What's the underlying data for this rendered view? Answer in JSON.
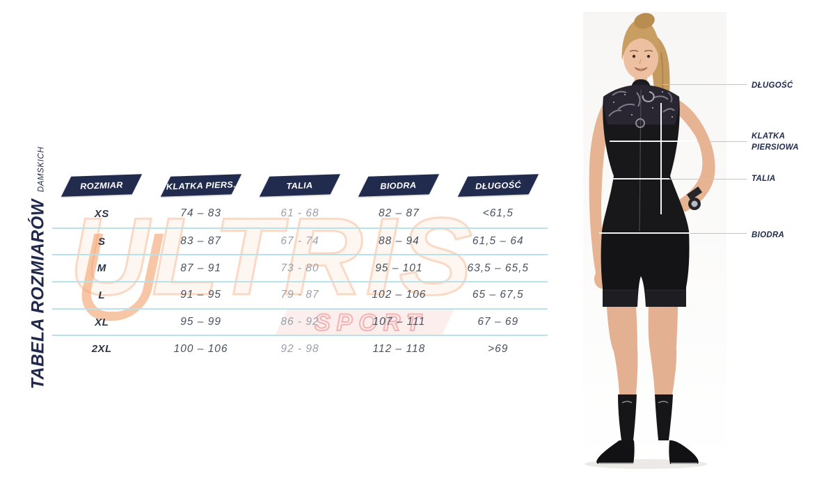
{
  "side_title": {
    "title": "TABELA ROZMIARÓW",
    "subtitle": "DAMSKICH"
  },
  "watermark": {
    "brand": "ULTRIS",
    "sub_brand": "SPORT",
    "orange": "#f2a06e",
    "red": "#e87878"
  },
  "measurement_labels": {
    "length": "DŁUGOŚĆ",
    "chest": "KLATKA PIERSIOWA",
    "waist": "TALIA",
    "hips": "BIODRA"
  },
  "colors": {
    "header_bg": "#212b4e",
    "navy_text": "#1f2a4e",
    "body_text": "#49525f",
    "muted_text": "#9aa1ab",
    "separator": "#b7e1eb"
  },
  "chart_data": {
    "type": "table",
    "title": "TABELA ROZMIARÓW DAMSKICH",
    "columns": [
      "ROZMIAR",
      "KLATKA PIERS.",
      "TALIA",
      "BIODRA",
      "DŁUGOŚĆ"
    ],
    "rows": [
      [
        "XS",
        "74 – 83",
        "61 - 68",
        "82 – 87",
        "<61,5"
      ],
      [
        "S",
        "83 – 87",
        "67 - 74",
        "88 – 94",
        "61,5 – 64"
      ],
      [
        "M",
        "87 – 91",
        "73 - 80",
        "95 – 101",
        "63,5 – 65,5"
      ],
      [
        "L",
        "91 – 95",
        "79 - 87",
        "102 – 106",
        "65 – 67,5"
      ],
      [
        "XL",
        "95 – 99",
        "86 - 92",
        "107 – 111",
        "67 – 69"
      ],
      [
        "2XL",
        "100 – 106",
        "92 - 98",
        "112 – 118",
        ">69"
      ]
    ]
  }
}
